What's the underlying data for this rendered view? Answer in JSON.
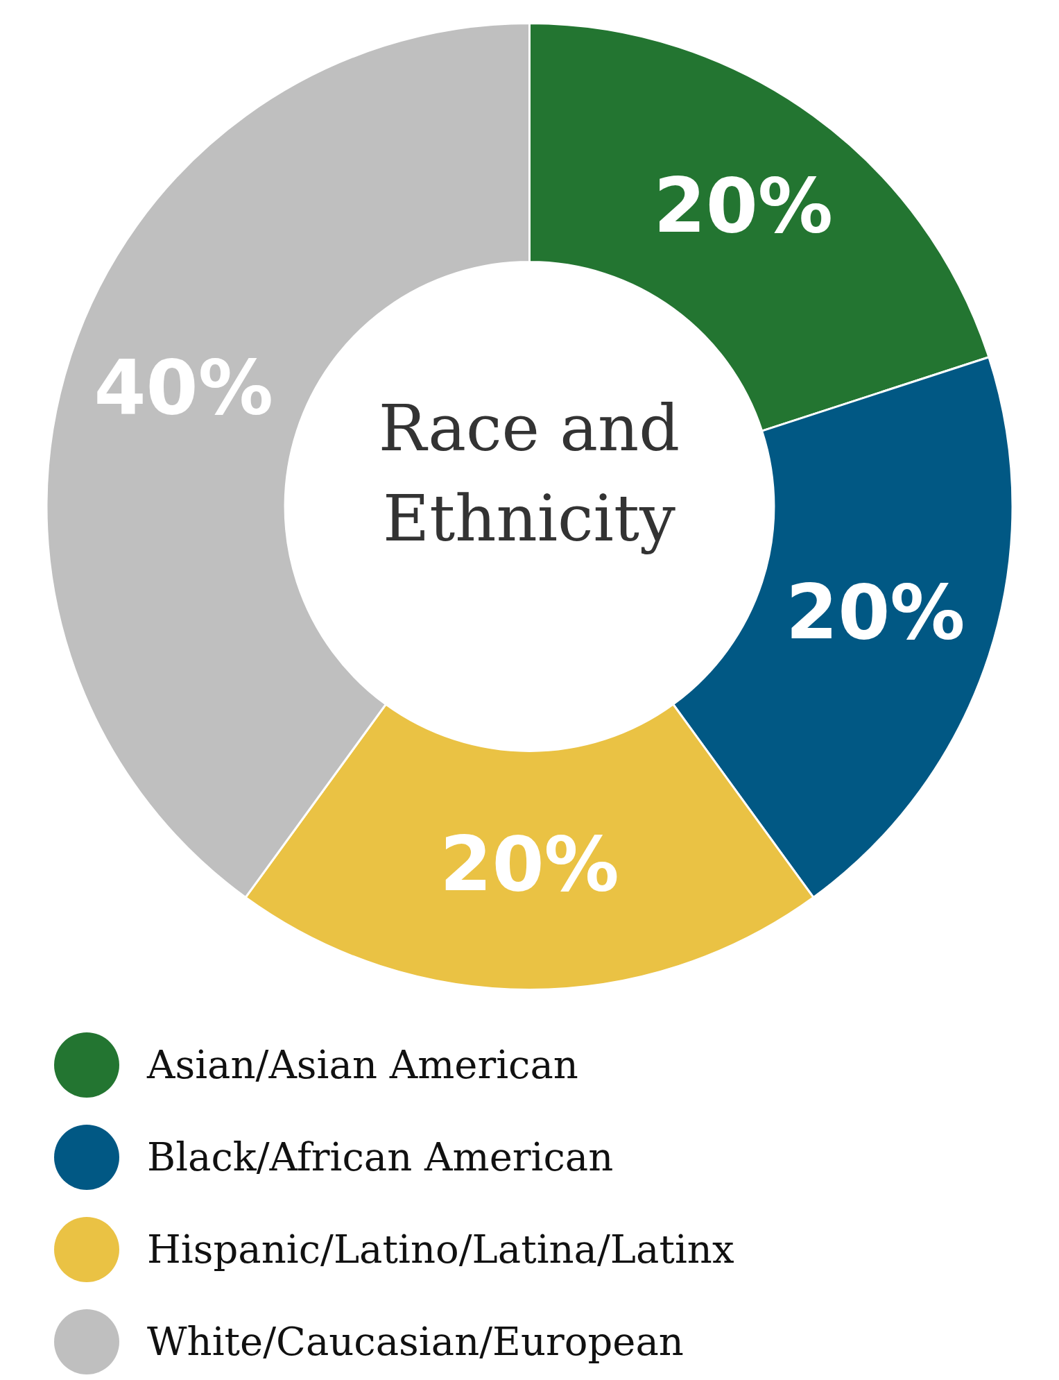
{
  "chart_data": {
    "type": "donut",
    "title": "Race and Ethnicity",
    "categories": [
      "Asian/Asian American",
      "Black/African American",
      "Hispanic/Latino/Latina/Latinx",
      "White/Caucasian/European"
    ],
    "values": [
      20,
      20,
      20,
      40
    ],
    "colors": [
      "#237531",
      "#015884",
      "#eac244",
      "#bfbfbf"
    ],
    "value_labels": [
      "20%",
      "20%",
      "20%",
      "40%"
    ],
    "legend": "bottom"
  }
}
